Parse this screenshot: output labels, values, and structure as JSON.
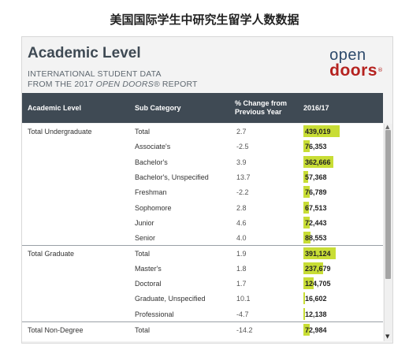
{
  "caption": "美国国际学生中研究生留学人数数据",
  "panel": {
    "title": "Academic Level",
    "subtitle_line1": "INTERNATIONAL STUDENT DATA",
    "subtitle_line2_prefix": "FROM THE 2017 ",
    "subtitle_line2_em": "OPEN DOORS®",
    "subtitle_line2_suffix": " REPORT",
    "logo_open": "open",
    "logo_doors": "doors",
    "logo_reg": "®"
  },
  "table": {
    "headers": {
      "level": "Academic Level",
      "sub": "Sub Category",
      "pct_line1": "% Change from",
      "pct_line2": "Previous Year",
      "year": "2016/17"
    },
    "max_value": 439019,
    "rows": [
      {
        "level": "Total Undergraduate",
        "sub": "Total",
        "pct": "2.7",
        "value": 439019,
        "value_text": "439,019"
      },
      {
        "level": "",
        "sub": "Associate's",
        "pct": "-2.5",
        "value": 76353,
        "value_text": "76,353"
      },
      {
        "level": "",
        "sub": "Bachelor's",
        "pct": "3.9",
        "value": 362666,
        "value_text": "362,666"
      },
      {
        "level": "",
        "sub": "Bachelor's, Unspecified",
        "pct": "13.7",
        "value": 57368,
        "value_text": "57,368"
      },
      {
        "level": "",
        "sub": "Freshman",
        "pct": "-2.2",
        "value": 76789,
        "value_text": "76,789"
      },
      {
        "level": "",
        "sub": "Sophomore",
        "pct": "2.8",
        "value": 67513,
        "value_text": "67,513"
      },
      {
        "level": "",
        "sub": "Junior",
        "pct": "4.6",
        "value": 72443,
        "value_text": "72,443"
      },
      {
        "level": "",
        "sub": "Senior",
        "pct": "4.0",
        "value": 88553,
        "value_text": "88,553"
      },
      {
        "level": "Total Graduate",
        "sub": "Total",
        "pct": "1.9",
        "value": 391124,
        "value_text": "391,124"
      },
      {
        "level": "",
        "sub": "Master's",
        "pct": "1.8",
        "value": 237679,
        "value_text": "237,679"
      },
      {
        "level": "",
        "sub": "Doctoral",
        "pct": "1.7",
        "value": 124705,
        "value_text": "124,705"
      },
      {
        "level": "",
        "sub": "Graduate, Unspecified",
        "pct": "10.1",
        "value": 16602,
        "value_text": "16,602"
      },
      {
        "level": "",
        "sub": "Professional",
        "pct": "-4.7",
        "value": 12138,
        "value_text": "12,138"
      },
      {
        "level": "Total Non-Degree",
        "sub": "Total",
        "pct": "-14.2",
        "value": 72984,
        "value_text": "72,984"
      }
    ]
  },
  "colors": {
    "header_bg": "#3f4a54",
    "bar": "#c8dd35",
    "logo_open": "#2d4a6b",
    "logo_doors": "#b5221f"
  },
  "icons": {
    "scroll_up": "triangle-up",
    "scroll_down": "triangle-down"
  }
}
